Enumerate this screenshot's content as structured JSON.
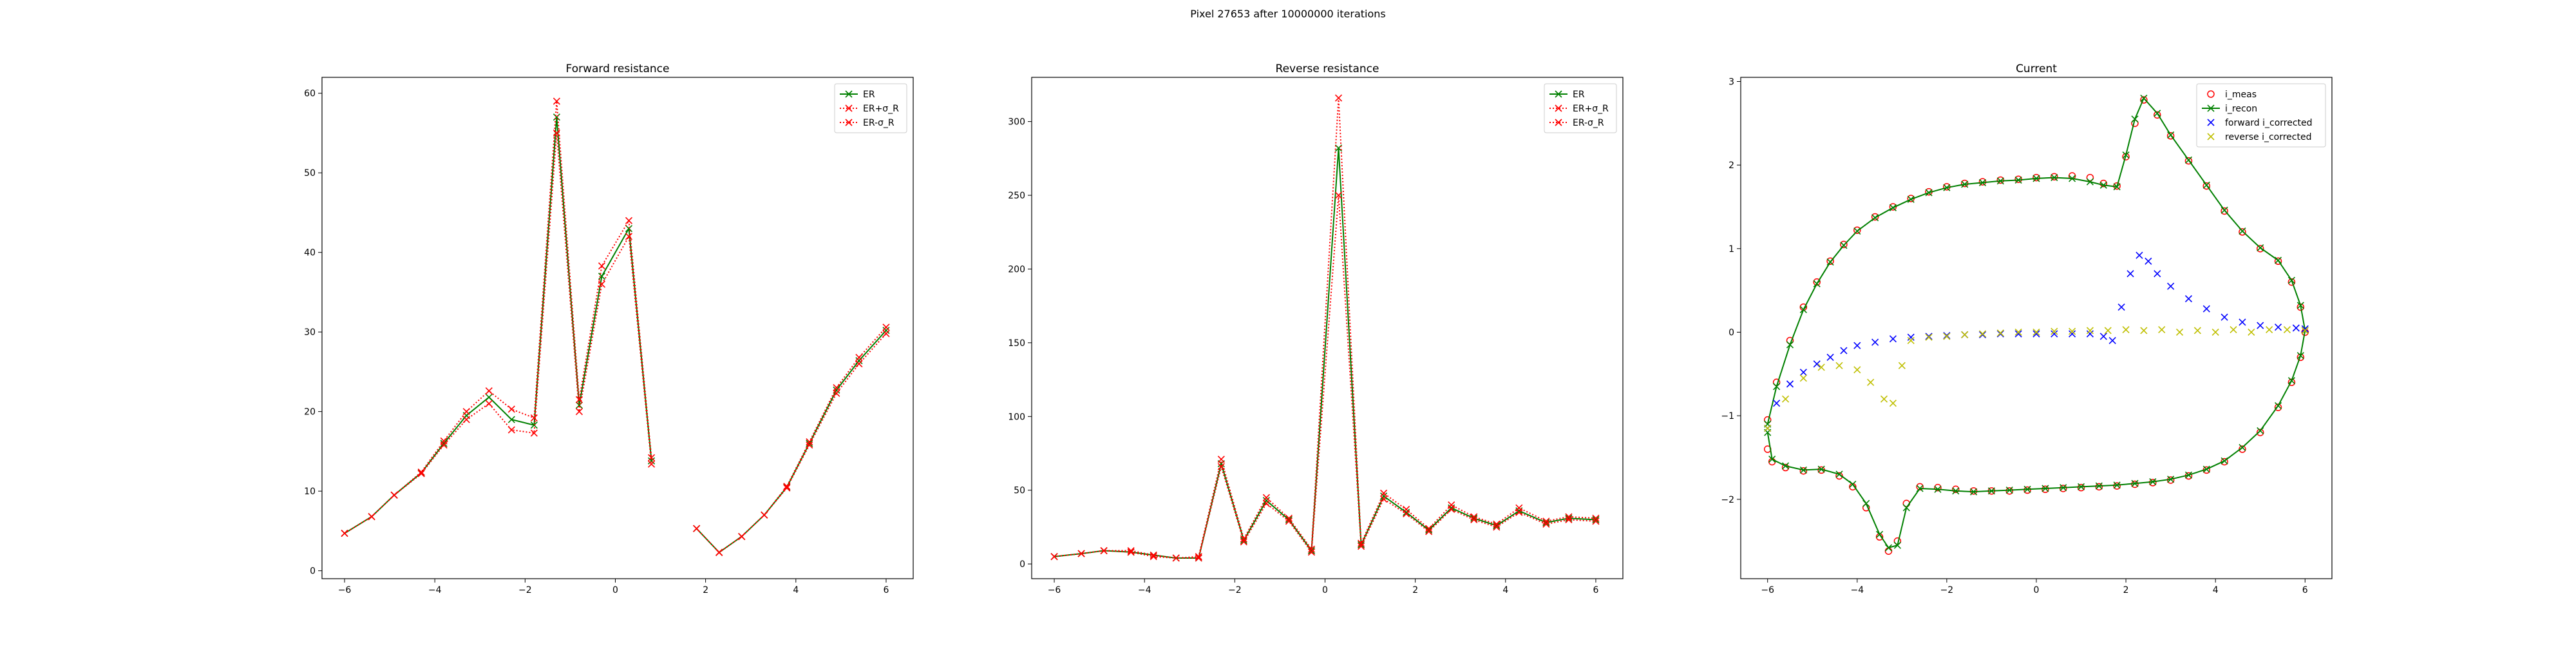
{
  "figure": {
    "suptitle": "Pixel 27653 after 10000000 iterations"
  },
  "chart_data": [
    {
      "type": "line",
      "title": "Forward resistance",
      "xlim": [
        -6.5,
        6.6
      ],
      "ylim": [
        -1,
        62
      ],
      "xticks": [
        -6,
        -4,
        -2,
        0,
        2,
        4,
        6
      ],
      "yticks": [
        0,
        10,
        20,
        30,
        40,
        50,
        60
      ],
      "grid": false,
      "legend_position": "top-right",
      "series": [
        {
          "name": "ER",
          "color": "#008000",
          "style": "solid",
          "marker": "x",
          "x": [
            -6.0,
            -5.4,
            -4.9,
            -4.3,
            -3.8,
            -3.3,
            -2.8,
            -2.3,
            -1.8,
            -1.3,
            -0.8,
            -0.3,
            0.3,
            0.8,
            null,
            1.8,
            2.3,
            2.8,
            3.3,
            3.8,
            4.3,
            4.9,
            5.4,
            6.0
          ],
          "y": [
            4.7,
            6.8,
            9.5,
            12.3,
            16.0,
            19.5,
            21.8,
            19.0,
            18.3,
            57.0,
            20.8,
            37.0,
            43.0,
            13.8,
            null,
            5.3,
            2.3,
            4.3,
            7.0,
            10.5,
            16.0,
            22.7,
            26.4,
            30.2
          ]
        },
        {
          "name": "ER+σ_R",
          "color": "#ff0000",
          "style": "dotted",
          "marker": "x",
          "x": [
            -6.0,
            -5.4,
            -4.9,
            -4.3,
            -3.8,
            -3.3,
            -2.8,
            -2.3,
            -1.8,
            -1.3,
            -0.8,
            -0.3,
            0.3,
            0.8,
            null,
            1.8,
            2.3,
            2.8,
            3.3,
            3.8,
            4.3,
            4.9,
            5.4,
            6.0
          ],
          "y": [
            4.7,
            6.8,
            9.5,
            12.4,
            16.3,
            20.0,
            22.6,
            20.3,
            19.2,
            59.0,
            21.5,
            38.3,
            44.0,
            14.2,
            null,
            5.3,
            2.3,
            4.3,
            7.0,
            10.6,
            16.2,
            23.0,
            26.8,
            30.6
          ]
        },
        {
          "name": "ER-σ_R",
          "color": "#ff0000",
          "style": "dotted",
          "marker": "x",
          "x": [
            -6.0,
            -5.4,
            -4.9,
            -4.3,
            -3.8,
            -3.3,
            -2.8,
            -2.3,
            -1.8,
            -1.3,
            -0.8,
            -0.3,
            0.3,
            0.8,
            null,
            1.8,
            2.3,
            2.8,
            3.3,
            3.8,
            4.3,
            4.9,
            5.4,
            6.0
          ],
          "y": [
            4.7,
            6.8,
            9.5,
            12.2,
            15.8,
            19.0,
            21.0,
            17.7,
            17.3,
            55.0,
            20.0,
            36.0,
            42.0,
            13.4,
            null,
            5.3,
            2.3,
            4.3,
            7.0,
            10.4,
            15.8,
            22.3,
            26.0,
            29.8
          ]
        }
      ]
    },
    {
      "type": "line",
      "title": "Reverse resistance",
      "xlim": [
        -6.5,
        6.6
      ],
      "ylim": [
        -10,
        330
      ],
      "xticks": [
        -6,
        -4,
        -2,
        0,
        2,
        4,
        6
      ],
      "yticks": [
        0,
        50,
        100,
        150,
        200,
        250,
        300
      ],
      "grid": false,
      "legend_position": "top-right",
      "series": [
        {
          "name": "ER",
          "color": "#008000",
          "style": "solid",
          "marker": "x",
          "x": [
            -6.0,
            -5.4,
            -4.9,
            -4.3,
            -3.8,
            -3.3,
            -2.8,
            -2.3,
            -1.8,
            -1.3,
            -0.8,
            -0.3,
            0.3,
            0.8,
            1.3,
            1.8,
            2.3,
            2.8,
            3.3,
            3.8,
            4.3,
            4.9,
            5.4,
            6.0
          ],
          "y": [
            5,
            7,
            9,
            8,
            6,
            4,
            4,
            68,
            16,
            43,
            30,
            9,
            282,
            13,
            46,
            35,
            23,
            38,
            31,
            26,
            36,
            28,
            31,
            30
          ]
        },
        {
          "name": "ER+σ_R",
          "color": "#ff0000",
          "style": "dotted",
          "marker": "x",
          "x": [
            -6.0,
            -5.4,
            -4.9,
            -4.3,
            -3.8,
            -3.3,
            -2.8,
            -2.3,
            -1.8,
            -1.3,
            -0.8,
            -0.3,
            0.3,
            0.8,
            1.3,
            1.8,
            2.3,
            2.8,
            3.3,
            3.8,
            4.3,
            4.9,
            5.4,
            6.0
          ],
          "y": [
            5,
            7,
            9,
            9,
            6,
            4,
            5,
            71,
            17,
            45,
            31,
            10,
            316,
            14,
            48,
            37,
            24,
            40,
            32,
            27,
            38,
            29,
            32,
            31
          ]
        },
        {
          "name": "ER-σ_R",
          "color": "#ff0000",
          "style": "dotted",
          "marker": "x",
          "x": [
            -6.0,
            -5.4,
            -4.9,
            -4.3,
            -3.8,
            -3.3,
            -2.8,
            -2.3,
            -1.8,
            -1.3,
            -0.8,
            -0.3,
            0.3,
            0.8,
            1.3,
            1.8,
            2.3,
            2.8,
            3.3,
            3.8,
            4.3,
            4.9,
            5.4,
            6.0
          ],
          "y": [
            5,
            7,
            9,
            8,
            5,
            4,
            4,
            66,
            15,
            41,
            29,
            8,
            250,
            12,
            44,
            34,
            22,
            37,
            30,
            25,
            35,
            27,
            30,
            29
          ]
        }
      ]
    },
    {
      "type": "scatter",
      "title": "Current",
      "xlim": [
        -6.6,
        6.6
      ],
      "ylim": [
        -2.95,
        3.05
      ],
      "xticks": [
        -6,
        -4,
        -2,
        0,
        2,
        4,
        6
      ],
      "yticks": [
        -2,
        -1,
        0,
        1,
        2,
        3
      ],
      "grid": false,
      "legend_position": "top-right",
      "series": [
        {
          "name": "i_meas",
          "color": "#ff0000",
          "marker": "o",
          "x": [
            -6.0,
            -5.8,
            -5.5,
            -5.2,
            -4.9,
            -4.6,
            -4.3,
            -4.0,
            -3.6,
            -3.2,
            -2.8,
            -2.4,
            -2.0,
            -1.6,
            -1.2,
            -0.8,
            -0.4,
            0.0,
            0.4,
            0.8,
            1.2,
            1.5,
            1.8,
            2.0,
            2.2,
            2.4,
            2.7,
            3.0,
            3.4,
            3.8,
            4.2,
            4.6,
            5.0,
            5.4,
            5.7,
            5.9,
            6.0,
            5.9,
            5.7,
            5.4,
            5.0,
            4.6,
            4.2,
            3.8,
            3.4,
            3.0,
            2.6,
            2.2,
            1.8,
            1.4,
            1.0,
            0.6,
            0.2,
            -0.2,
            -0.6,
            -1.0,
            -1.4,
            -1.8,
            -2.2,
            -2.6,
            -2.9,
            -3.1,
            -3.3,
            -3.5,
            -3.8,
            -4.1,
            -4.4,
            -4.8,
            -5.2,
            -5.6,
            -5.9,
            -6.0
          ],
          "y": [
            -1.05,
            -0.6,
            -0.1,
            0.3,
            0.6,
            0.85,
            1.05,
            1.22,
            1.38,
            1.5,
            1.6,
            1.68,
            1.74,
            1.78,
            1.8,
            1.82,
            1.83,
            1.85,
            1.86,
            1.87,
            1.85,
            1.78,
            1.75,
            2.1,
            2.5,
            2.78,
            2.6,
            2.35,
            2.05,
            1.75,
            1.45,
            1.2,
            1.0,
            0.85,
            0.6,
            0.3,
            0.0,
            -0.3,
            -0.6,
            -0.9,
            -1.2,
            -1.4,
            -1.55,
            -1.65,
            -1.72,
            -1.77,
            -1.8,
            -1.82,
            -1.84,
            -1.85,
            -1.86,
            -1.87,
            -1.88,
            -1.89,
            -1.9,
            -1.9,
            -1.9,
            -1.88,
            -1.86,
            -1.85,
            -2.05,
            -2.5,
            -2.62,
            -2.45,
            -2.1,
            -1.85,
            -1.72,
            -1.65,
            -1.66,
            -1.62,
            -1.55,
            -1.4
          ]
        },
        {
          "name": "i_recon",
          "color": "#008000",
          "marker": "x-line",
          "x": [
            -6.0,
            -5.8,
            -5.5,
            -5.2,
            -4.9,
            -4.6,
            -4.3,
            -4.0,
            -3.6,
            -3.2,
            -2.8,
            -2.4,
            -2.0,
            -1.6,
            -1.2,
            -0.8,
            -0.4,
            0.0,
            0.4,
            0.8,
            1.2,
            1.5,
            1.8,
            2.0,
            2.2,
            2.4,
            2.7,
            3.0,
            3.4,
            3.8,
            4.2,
            4.6,
            5.0,
            5.4,
            5.7,
            5.9,
            6.0,
            5.9,
            5.7,
            5.4,
            5.0,
            4.6,
            4.2,
            3.8,
            3.4,
            3.0,
            2.6,
            2.2,
            1.8,
            1.4,
            1.0,
            0.6,
            0.2,
            -0.2,
            -0.6,
            -1.0,
            -1.4,
            -1.8,
            -2.2,
            -2.6,
            -2.9,
            -3.1,
            -3.3,
            -3.5,
            -3.8,
            -4.1,
            -4.4,
            -4.8,
            -5.2,
            -5.6,
            -5.9,
            -6.0
          ],
          "y": [
            -1.1,
            -0.65,
            -0.15,
            0.27,
            0.58,
            0.84,
            1.04,
            1.21,
            1.37,
            1.49,
            1.59,
            1.67,
            1.73,
            1.77,
            1.79,
            1.81,
            1.82,
            1.84,
            1.85,
            1.84,
            1.8,
            1.76,
            1.74,
            2.12,
            2.55,
            2.8,
            2.62,
            2.36,
            2.06,
            1.76,
            1.46,
            1.21,
            1.01,
            0.86,
            0.62,
            0.32,
            0.02,
            -0.28,
            -0.58,
            -0.88,
            -1.18,
            -1.38,
            -1.54,
            -1.64,
            -1.71,
            -1.76,
            -1.79,
            -1.81,
            -1.83,
            -1.84,
            -1.85,
            -1.86,
            -1.87,
            -1.88,
            -1.89,
            -1.9,
            -1.91,
            -1.9,
            -1.88,
            -1.87,
            -2.1,
            -2.55,
            -2.58,
            -2.42,
            -2.05,
            -1.82,
            -1.7,
            -1.64,
            -1.65,
            -1.6,
            -1.52,
            -1.2
          ]
        },
        {
          "name": "forward i_corrected",
          "color": "#0000ff",
          "marker": "x",
          "x": [
            -6.0,
            -5.8,
            -5.5,
            -5.2,
            -4.9,
            -4.6,
            -4.3,
            -4.0,
            -3.6,
            -3.2,
            -2.8,
            -2.4,
            -2.0,
            -1.6,
            -1.2,
            -0.8,
            -0.4,
            0.0,
            0.4,
            0.8,
            1.2,
            1.5,
            1.7,
            1.9,
            2.1,
            2.3,
            2.5,
            2.7,
            3.0,
            3.4,
            3.8,
            4.2,
            4.6,
            5.0,
            5.4,
            5.8,
            6.0
          ],
          "y": [
            -1.15,
            -0.85,
            -0.62,
            -0.48,
            -0.38,
            -0.3,
            -0.22,
            -0.16,
            -0.12,
            -0.08,
            -0.06,
            -0.05,
            -0.04,
            -0.03,
            -0.03,
            -0.02,
            -0.02,
            -0.02,
            -0.02,
            -0.02,
            -0.02,
            -0.05,
            -0.1,
            0.3,
            0.7,
            0.92,
            0.85,
            0.7,
            0.55,
            0.4,
            0.28,
            0.18,
            0.12,
            0.08,
            0.06,
            0.05,
            0.04
          ]
        },
        {
          "name": "reverse i_corrected",
          "color": "#bfbf00",
          "marker": "x",
          "x": [
            6.0,
            5.6,
            5.2,
            4.8,
            4.4,
            4.0,
            3.6,
            3.2,
            2.8,
            2.4,
            2.0,
            1.6,
            1.2,
            0.8,
            0.4,
            0.0,
            -0.4,
            -0.8,
            -1.2,
            -1.6,
            -2.0,
            -2.4,
            -2.8,
            -3.0,
            -3.2,
            -3.4,
            -3.7,
            -4.0,
            -4.4,
            -4.8,
            -5.2,
            -5.6,
            -6.0
          ],
          "y": [
            0.02,
            0.03,
            0.03,
            0.0,
            0.03,
            0.0,
            0.02,
            0.0,
            0.03,
            0.02,
            0.03,
            0.02,
            0.02,
            0.01,
            0.01,
            0.0,
            0.0,
            -0.01,
            -0.02,
            -0.03,
            -0.05,
            -0.06,
            -0.1,
            -0.4,
            -0.85,
            -0.8,
            -0.6,
            -0.45,
            -0.4,
            -0.42,
            -0.55,
            -0.8,
            -1.15
          ]
        }
      ]
    }
  ]
}
